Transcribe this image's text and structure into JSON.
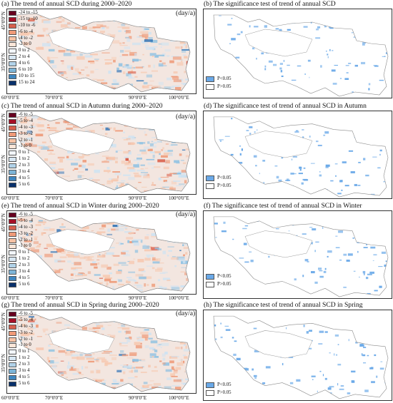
{
  "colors": {
    "pos_light": "#f6c9b1",
    "pos_mid": "#ee9a78",
    "pos_dark": "#d8543e",
    "neg_light": "#cfe3f2",
    "neg_mid": "#8ec1e2",
    "neg_dark": "#2f72b5",
    "sig_blue": "#6aa9e8",
    "outline": "#9a9a9a"
  },
  "unit": "(day/a)",
  "axes": {
    "lat": [
      "45°0'0\"N",
      "35°0'0\"N"
    ],
    "lon": [
      "60°0'0\"E",
      "70°0'0\"E",
      "90°0'0\"E",
      "100°0'0\"E"
    ]
  },
  "sig_legend": {
    "significant": "P<0.05",
    "not_significant": "P>0.05"
  },
  "panels": [
    {
      "title": "(a) The trend of annual SCD during 2000–2020",
      "legend": [
        {
          "label": "-24 to -15",
          "color": "#67001f"
        },
        {
          "label": "-15 to -10",
          "color": "#a50f26"
        },
        {
          "label": "-10 to -6",
          "color": "#d6604d"
        },
        {
          "label": "-6 to -4",
          "color": "#f09a78"
        },
        {
          "label": "-4 to -2",
          "color": "#f7c2a5"
        },
        {
          "label": "-2 to 0",
          "color": "#fde6d8"
        },
        {
          "label": "0 to 2",
          "color": "#f2f6fa"
        },
        {
          "label": "2 to 4",
          "color": "#d7e7f3"
        },
        {
          "label": "4 to 6",
          "color": "#b1d2e8"
        },
        {
          "label": "6 to 10",
          "color": "#7db5d8"
        },
        {
          "label": "10 to 15",
          "color": "#3f86bf"
        },
        {
          "label": "15 to 24",
          "color": "#08306b"
        }
      ]
    },
    {
      "title": "(c) The trend of annual SCD in Autumn during 2000–2020",
      "legend": [
        {
          "label": "-6 to -5",
          "color": "#67001f"
        },
        {
          "label": "-5 to -4",
          "color": "#a50f26"
        },
        {
          "label": "-4 to -3",
          "color": "#d6604d"
        },
        {
          "label": "-3 to -2",
          "color": "#f09a78"
        },
        {
          "label": "-2 to -1",
          "color": "#f7c2a5"
        },
        {
          "label": "-1 to 0",
          "color": "#fde6d8"
        },
        {
          "label": "0 to 1",
          "color": "#f2f6fa"
        },
        {
          "label": "1 to 2",
          "color": "#d7e7f3"
        },
        {
          "label": "2 to 3",
          "color": "#b1d2e8"
        },
        {
          "label": "3 to 4",
          "color": "#7db5d8"
        },
        {
          "label": "4 to 5",
          "color": "#3f86bf"
        },
        {
          "label": "5 to 6",
          "color": "#08306b"
        }
      ]
    },
    {
      "title": "(e) The trend of annual SCD in Winter during 2000–2020",
      "legend": [
        {
          "label": "-6 to -5",
          "color": "#67001f"
        },
        {
          "label": "-5 to -4",
          "color": "#a50f26"
        },
        {
          "label": "-4 to -3",
          "color": "#d6604d"
        },
        {
          "label": "-3 to -2",
          "color": "#f09a78"
        },
        {
          "label": "-2 to -1",
          "color": "#f7c2a5"
        },
        {
          "label": "-1 to 0",
          "color": "#fde6d8"
        },
        {
          "label": "0 to 1",
          "color": "#f2f6fa"
        },
        {
          "label": "1 to 2",
          "color": "#d7e7f3"
        },
        {
          "label": "2 to 3",
          "color": "#b1d2e8"
        },
        {
          "label": "3 to 4",
          "color": "#7db5d8"
        },
        {
          "label": "4 to 5",
          "color": "#3f86bf"
        },
        {
          "label": "5 to 6",
          "color": "#08306b"
        }
      ]
    },
    {
      "title": "(g) The trend of annual SCD in Spring during 2000–2020",
      "legend": [
        {
          "label": "-6 to -5",
          "color": "#67001f"
        },
        {
          "label": "-5 to -4",
          "color": "#a50f26"
        },
        {
          "label": "-4 to -3",
          "color": "#d6604d"
        },
        {
          "label": "-3 to -2",
          "color": "#f09a78"
        },
        {
          "label": "-2 to -1",
          "color": "#f7c2a5"
        },
        {
          "label": "-1 to 0",
          "color": "#fde6d8"
        },
        {
          "label": "0 to 1",
          "color": "#f2f6fa"
        },
        {
          "label": "1 to 2",
          "color": "#d7e7f3"
        },
        {
          "label": "2 to 3",
          "color": "#b1d2e8"
        },
        {
          "label": "3 to 4",
          "color": "#7db5d8"
        },
        {
          "label": "4 to 5",
          "color": "#3f86bf"
        },
        {
          "label": "5 to 6",
          "color": "#08306b"
        }
      ]
    }
  ],
  "sig_panels": [
    {
      "title": "(b) The significance test of trend of annual SCD"
    },
    {
      "title": "(d) The significance test of trend of annual SCD in Autumn"
    },
    {
      "title": "(f) The significance test of trend of annual SCD in Winter"
    },
    {
      "title": "(h) The significance test of trend of annual SCD in Spring"
    }
  ]
}
